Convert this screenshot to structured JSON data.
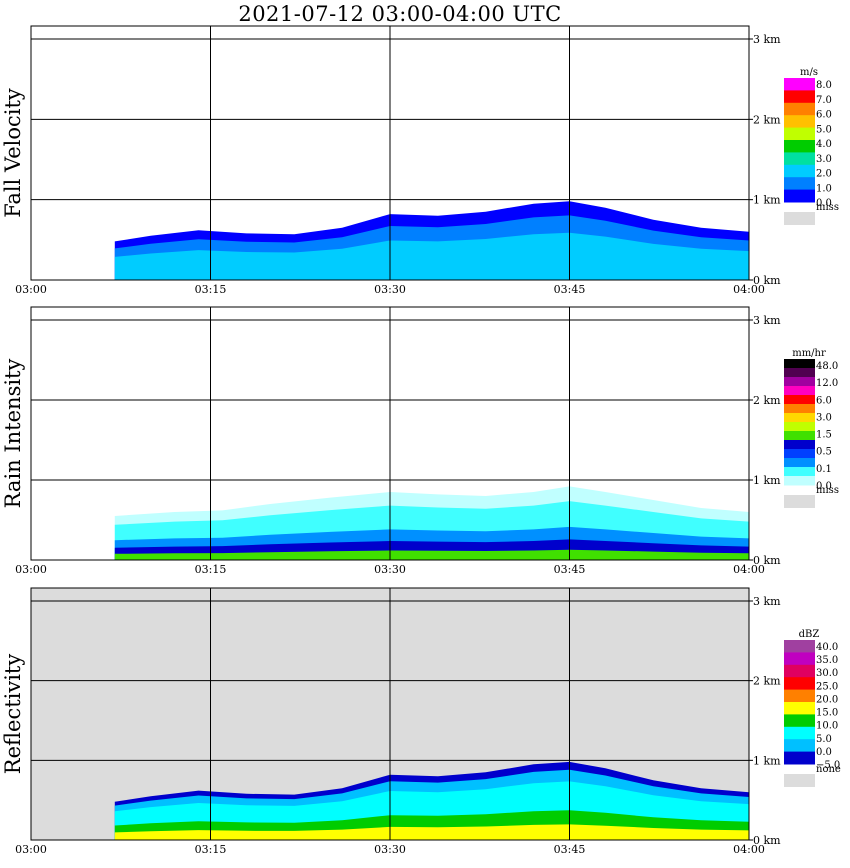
{
  "title": "2021-07-12   03:00-04:00 UTC",
  "colors": {
    "grid": "#000000",
    "panel_bg": "#ffffff",
    "missing_bg": "#dcdcdc"
  },
  "chart_data": [
    {
      "type": "heatmap",
      "ylabel": "Fall Velocity",
      "x_ticks": [
        "03:00",
        "03:15",
        "03:30",
        "03:45",
        "04:00"
      ],
      "y_ticks": [
        "0 km",
        "1 km",
        "2 km",
        "3 km"
      ],
      "xlim": [
        "03:00",
        "04:00"
      ],
      "ylim_km": [
        0,
        3.0
      ],
      "legend": {
        "unit": "m/s",
        "labels": [
          "8.0",
          "7.0",
          "6.0",
          "5.0",
          "4.0",
          "3.0",
          "2.0",
          "1.0",
          "0.0"
        ],
        "colors": [
          "#ff00ff",
          "#ff0000",
          "#ff8000",
          "#ffc000",
          "#c0ff00",
          "#00cc00",
          "#00e0a0",
          "#00ccff",
          "#0080ff",
          "#0000ff"
        ],
        "missing_label": "miss",
        "missing_color": "#dcdcdc"
      },
      "echo_top_km": [
        [
          7,
          0.48
        ],
        [
          10,
          0.55
        ],
        [
          14,
          0.62
        ],
        [
          18,
          0.58
        ],
        [
          22,
          0.57
        ],
        [
          26,
          0.65
        ],
        [
          30,
          0.82
        ],
        [
          34,
          0.8
        ],
        [
          38,
          0.85
        ],
        [
          42,
          0.95
        ],
        [
          45,
          0.98
        ],
        [
          48,
          0.9
        ],
        [
          52,
          0.75
        ],
        [
          56,
          0.65
        ],
        [
          60,
          0.6
        ]
      ]
    },
    {
      "type": "heatmap",
      "ylabel": "Rain Intensity",
      "x_ticks": [
        "03:00",
        "03:15",
        "03:30",
        "03:45",
        "04:00"
      ],
      "y_ticks": [
        "0 km",
        "1 km",
        "2 km",
        "3 km"
      ],
      "xlim": [
        "03:00",
        "04:00"
      ],
      "ylim_km": [
        0,
        3.0
      ],
      "legend": {
        "unit": "mm/hr",
        "labels": [
          "48.0",
          "12.0",
          "6.0",
          "3.0",
          "1.5",
          "0.5",
          "0.1",
          "0.0"
        ],
        "colors": [
          "#000000",
          "#500050",
          "#a000a0",
          "#ff00c0",
          "#ff0000",
          "#ff8000",
          "#ffd800",
          "#c0ff00",
          "#40e000",
          "#0000cc",
          "#0040ff",
          "#0090ff",
          "#40ffff",
          "#c0ffff"
        ],
        "missing_label": "miss",
        "missing_color": "#dcdcdc"
      },
      "echo_top_km": [
        [
          7,
          0.55
        ],
        [
          12,
          0.6
        ],
        [
          16,
          0.62
        ],
        [
          20,
          0.7
        ],
        [
          25,
          0.78
        ],
        [
          30,
          0.85
        ],
        [
          34,
          0.82
        ],
        [
          38,
          0.8
        ],
        [
          42,
          0.85
        ],
        [
          45,
          0.92
        ],
        [
          48,
          0.85
        ],
        [
          52,
          0.75
        ],
        [
          56,
          0.65
        ],
        [
          60,
          0.6
        ]
      ]
    },
    {
      "type": "heatmap",
      "ylabel": "Reflectivity",
      "x_ticks": [
        "03:00",
        "03:15",
        "03:30",
        "03:45",
        "04:00"
      ],
      "y_ticks": [
        "0 km",
        "1 km",
        "2 km",
        "3 km"
      ],
      "xlim": [
        "03:00",
        "04:00"
      ],
      "ylim_km": [
        0,
        3.0
      ],
      "legend": {
        "unit": "dBZ",
        "labels": [
          "40.0",
          "35.0",
          "30.0",
          "25.0",
          "20.0",
          "15.0",
          "10.0",
          "5.0",
          "0.0",
          "−5.0"
        ],
        "colors": [
          "#a040a0",
          "#c000c0",
          "#e00060",
          "#ff0000",
          "#ff8000",
          "#ffff00",
          "#00cc00",
          "#00ffff",
          "#00c0ff",
          "#0000cc"
        ],
        "missing_label": "none",
        "missing_color": "#dcdcdc"
      },
      "echo_top_km": [
        [
          7,
          0.48
        ],
        [
          10,
          0.55
        ],
        [
          14,
          0.62
        ],
        [
          18,
          0.58
        ],
        [
          22,
          0.57
        ],
        [
          26,
          0.65
        ],
        [
          30,
          0.82
        ],
        [
          34,
          0.8
        ],
        [
          38,
          0.85
        ],
        [
          42,
          0.95
        ],
        [
          45,
          0.98
        ],
        [
          48,
          0.9
        ],
        [
          52,
          0.75
        ],
        [
          56,
          0.65
        ],
        [
          60,
          0.6
        ]
      ]
    }
  ]
}
